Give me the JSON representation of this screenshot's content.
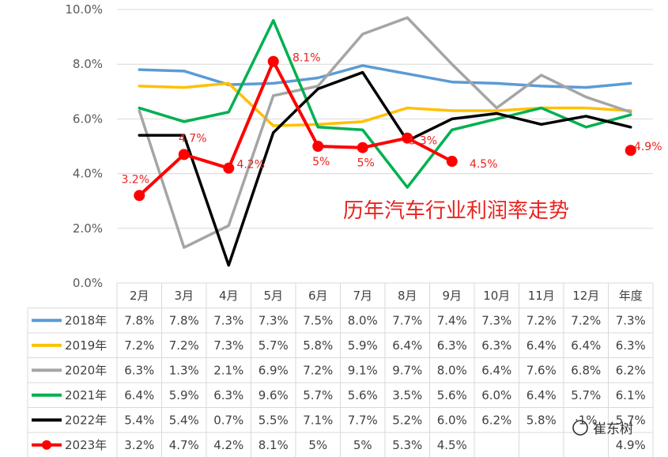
{
  "chart_data": {
    "type": "line",
    "title": "历年汽车行业利润率走势",
    "categories": [
      "2月",
      "3月",
      "4月",
      "5月",
      "6月",
      "7月",
      "8月",
      "9月",
      "10月",
      "11月",
      "12月",
      "年度"
    ],
    "ylim": [
      0,
      10
    ],
    "y_ticks": [
      "0.0%",
      "2.0%",
      "4.0%",
      "6.0%",
      "8.0%",
      "10.0%"
    ],
    "grid": "horizontal",
    "legend": "data-table-left",
    "series": [
      {
        "name": "2018年",
        "color": "#5b9bd5",
        "values": [
          7.8,
          7.75,
          7.25,
          7.3,
          7.5,
          7.95,
          7.65,
          7.35,
          7.3,
          7.2,
          7.15,
          7.3
        ],
        "table": [
          "7.8%",
          "7.8%",
          "7.3%",
          "7.3%",
          "7.5%",
          "8.0%",
          "7.7%",
          "7.4%",
          "7.3%",
          "7.2%",
          "7.2%",
          "7.3%"
        ]
      },
      {
        "name": "2019年",
        "color": "#ffc000",
        "values": [
          7.2,
          7.15,
          7.3,
          5.75,
          5.8,
          5.9,
          6.4,
          6.3,
          6.3,
          6.4,
          6.4,
          6.3
        ],
        "table": [
          "7.2%",
          "7.2%",
          "7.3%",
          "5.7%",
          "5.8%",
          "5.9%",
          "6.4%",
          "6.3%",
          "6.3%",
          "6.4%",
          "6.4%",
          "6.3%"
        ]
      },
      {
        "name": "2020年",
        "color": "#a5a5a5",
        "values": [
          6.3,
          1.3,
          2.1,
          6.85,
          7.2,
          9.1,
          9.7,
          8.0,
          6.4,
          7.6,
          6.8,
          6.25
        ],
        "table": [
          "6.3%",
          "1.3%",
          "2.1%",
          "6.9%",
          "7.2%",
          "9.1%",
          "9.7%",
          "8.0%",
          "6.4%",
          "7.6%",
          "6.8%",
          "6.2%"
        ]
      },
      {
        "name": "2021年",
        "color": "#00b050",
        "values": [
          6.4,
          5.9,
          6.25,
          9.6,
          5.7,
          5.6,
          3.5,
          5.6,
          6.0,
          6.4,
          5.7,
          6.15
        ],
        "table": [
          "6.4%",
          "5.9%",
          "6.3%",
          "9.6%",
          "5.7%",
          "5.6%",
          "3.5%",
          "5.6%",
          "6.0%",
          "6.4%",
          "5.7%",
          "6.1%"
        ]
      },
      {
        "name": "2022年",
        "color": "#000000",
        "values": [
          5.4,
          5.4,
          0.65,
          5.5,
          7.1,
          7.7,
          5.2,
          6.0,
          6.2,
          5.8,
          6.1,
          5.7
        ],
        "table": [
          "5.4%",
          "5.4%",
          "0.7%",
          "5.5%",
          "7.1%",
          "7.7%",
          "5.2%",
          "6.0%",
          "6.2%",
          "5.8%",
          "·1%",
          "5.7%"
        ]
      },
      {
        "name": "2023年",
        "color": "#ff0000",
        "values": [
          3.2,
          4.7,
          4.2,
          8.1,
          5.0,
          4.95,
          5.3,
          4.45,
          null,
          null,
          null,
          4.85
        ],
        "table": [
          "3.2%",
          "4.7%",
          "4.2%",
          "8.1%",
          "5%",
          "5%",
          "5.3%",
          "4.5%",
          "",
          "",
          "",
          "4.9%"
        ],
        "labels": [
          "3.2%",
          "4.7%",
          "4.2%",
          "8.1%",
          "5%",
          "5%",
          "5.3%",
          "4.5%",
          "",
          "",
          "",
          "4.9%"
        ]
      }
    ]
  },
  "watermark": "崔东树"
}
